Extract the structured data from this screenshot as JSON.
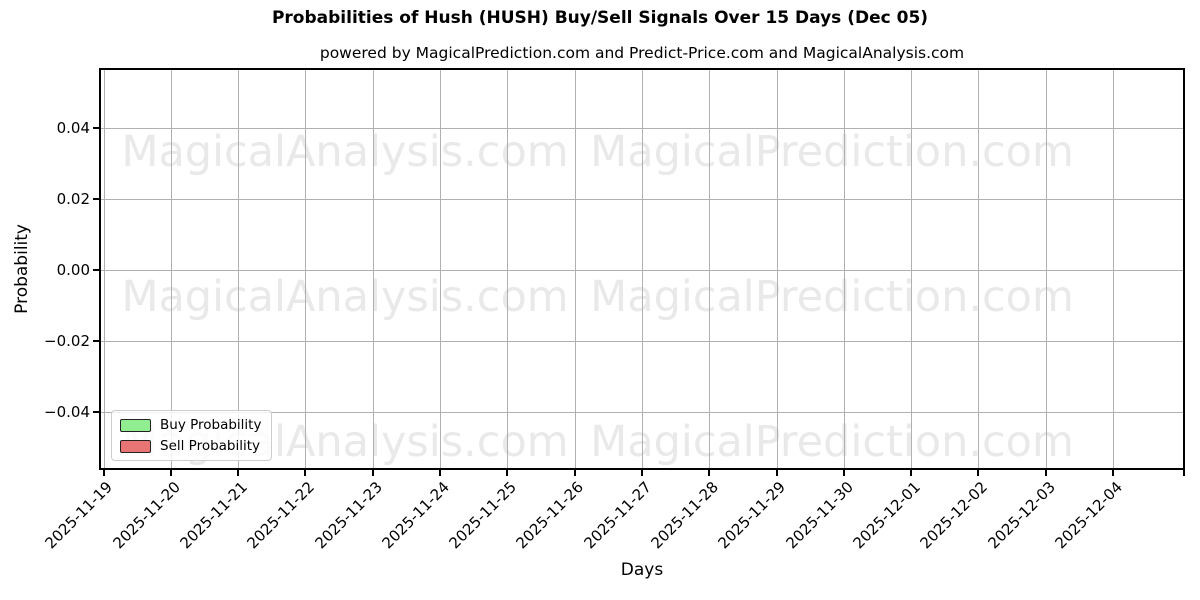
{
  "title": "Probabilities of Hush (HUSH) Buy/Sell Signals Over 15 Days (Dec 05)",
  "subtitle": "powered by MagicalPrediction.com and Predict-Price.com and MagicalAnalysis.com",
  "axes": {
    "x_label": "Days",
    "y_label": "Probability",
    "x_ticks": [
      "2025-11-19",
      "2025-11-20",
      "2025-11-21",
      "2025-11-22",
      "2025-11-23",
      "2025-11-24",
      "2025-11-25",
      "2025-11-26",
      "2025-11-27",
      "2025-11-28",
      "2025-11-29",
      "2025-11-30",
      "2025-12-01",
      "2025-12-02",
      "2025-12-03",
      "2025-12-04"
    ],
    "y_ticks": [
      "0.04",
      "0.02",
      "0.00",
      "−0.02",
      "−0.04"
    ]
  },
  "legend": [
    {
      "label": "Buy Probability",
      "color": "#90ee90"
    },
    {
      "label": "Sell Probability",
      "color": "#e87474"
    }
  ],
  "watermarks": {
    "left_text": "MagicalAnalysis.com",
    "right_text": "MagicalPrediction.com",
    "color": "#e9e9e9"
  },
  "colors": {
    "grid": "#b0b0b0",
    "spine": "#000000",
    "buy": "#90ee90",
    "sell": "#e87474",
    "background": "#ffffff"
  },
  "chart_data": {
    "type": "line",
    "title": "Probabilities of Hush (HUSH) Buy/Sell Signals Over 15 Days (Dec 05)",
    "subtitle": "powered by MagicalPrediction.com and Predict-Price.com and MagicalAnalysis.com",
    "xlabel": "Days",
    "ylabel": "Probability",
    "x": [
      "2025-11-19",
      "2025-11-20",
      "2025-11-21",
      "2025-11-22",
      "2025-11-23",
      "2025-11-24",
      "2025-11-25",
      "2025-11-26",
      "2025-11-27",
      "2025-11-28",
      "2025-11-29",
      "2025-11-30",
      "2025-12-01",
      "2025-12-02",
      "2025-12-03",
      "2025-12-04"
    ],
    "y_tick_values": [
      0.04,
      0.02,
      0.0,
      -0.02,
      -0.04
    ],
    "ylim": [
      -0.056,
      0.057
    ],
    "series": [
      {
        "name": "Buy Probability",
        "color": "#90ee90",
        "values": []
      },
      {
        "name": "Sell Probability",
        "color": "#e87474",
        "values": []
      }
    ],
    "grid": true,
    "legend_position": "lower left",
    "note": "plot area contains no visible data lines; only gridlines, watermarks and legend are rendered",
    "x_right_edge_tick_unlabeled": true
  }
}
